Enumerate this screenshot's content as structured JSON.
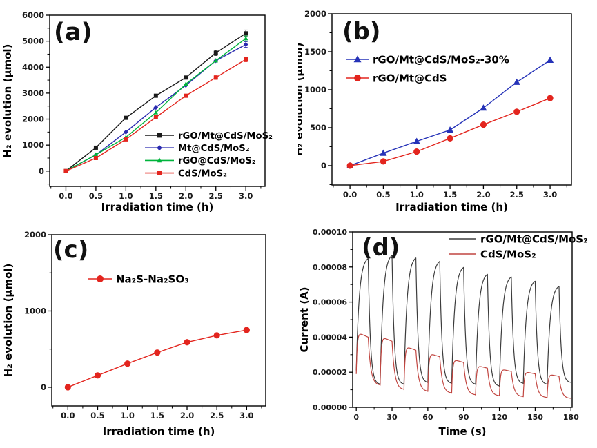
{
  "figure": {
    "background": "#ffffff",
    "panel_labels": [
      "(a)",
      "(b)",
      "(c)",
      "(d)"
    ]
  },
  "chart_data": [
    {
      "id": "a",
      "type": "line",
      "panel_label": "(a)",
      "xlabel": "Irradiation time (h)",
      "ylabel": "H₂ evolution (μmol)",
      "xlim": [
        -0.27,
        3.32
      ],
      "ylim": [
        -590,
        6000
      ],
      "xticks": [
        0.0,
        0.5,
        1.0,
        1.5,
        2.0,
        2.5,
        3.0
      ],
      "xtick_labels": [
        "0.0",
        "0.5",
        "1.0",
        "1.5",
        "2.0",
        "2.5",
        "3.0"
      ],
      "yticks": [
        0,
        1000,
        2000,
        3000,
        4000,
        5000,
        6000
      ],
      "ytick_labels": [
        "0",
        "1000",
        "2000",
        "3000",
        "4000",
        "5000",
        "6000"
      ],
      "x": [
        0,
        0.5,
        1.0,
        1.5,
        2.0,
        2.5,
        3.0
      ],
      "legend_position": "bottom-right",
      "series": [
        {
          "name": "rGO/Mt@CdS/MoS₂",
          "color": "#1a1a1a",
          "marker": "square",
          "values": [
            0,
            900,
            2050,
            2900,
            3600,
            4550,
            5300
          ],
          "err": [
            0,
            0,
            0,
            0,
            0,
            100,
            130
          ]
        },
        {
          "name": "Mt@CdS/MoS₂",
          "color": "#2a2ab0",
          "marker": "diamond",
          "values": [
            0,
            620,
            1500,
            2450,
            3300,
            4250,
            4870
          ],
          "err": [
            0,
            0,
            0,
            0,
            0,
            0,
            110
          ]
        },
        {
          "name": "rGO@CdS/MoS₂",
          "color": "#00b43c",
          "marker": "triangle",
          "values": [
            0,
            630,
            1300,
            2250,
            3350,
            4250,
            5100
          ],
          "err": [
            0,
            0,
            0,
            0,
            0,
            0,
            100
          ]
        },
        {
          "name": "CdS/MoS₂",
          "color": "#e3251e",
          "marker": "square",
          "values": [
            0,
            500,
            1220,
            2070,
            2900,
            3600,
            4300
          ],
          "err": [
            0,
            0,
            0,
            0,
            0,
            70,
            90
          ]
        }
      ]
    },
    {
      "id": "b",
      "type": "line",
      "panel_label": "(b)",
      "xlabel": "Irradiation time (h)",
      "ylabel": "H₂ evolution (μmol)",
      "xlim": [
        -0.27,
        3.32
      ],
      "ylim": [
        -255,
        2000
      ],
      "xticks": [
        0.0,
        0.5,
        1.0,
        1.5,
        2.0,
        2.5,
        3.0
      ],
      "xtick_labels": [
        "0.0",
        "0.5",
        "1.0",
        "1.5",
        "2.0",
        "2.5",
        "3.0"
      ],
      "yticks": [
        0,
        500,
        1000,
        1500,
        2000
      ],
      "ytick_labels": [
        "0",
        "500",
        "1000",
        "1500",
        "2000"
      ],
      "x": [
        0,
        0.5,
        1.0,
        1.5,
        2.0,
        2.5,
        3.0
      ],
      "legend_position": "top-left",
      "series": [
        {
          "name": "rGO/Mt@CdS/MoS₂-30%",
          "color": "#2633b8",
          "marker": "triangle",
          "values": [
            0,
            165,
            320,
            470,
            760,
            1100,
            1390
          ]
        },
        {
          "name": "rGO/Mt@CdS",
          "color": "#e3251e",
          "marker": "circle",
          "values": [
            0,
            55,
            185,
            360,
            540,
            710,
            890
          ]
        }
      ]
    },
    {
      "id": "c",
      "type": "line",
      "panel_label": "(c)",
      "xlabel": "Irradiation time (h)",
      "ylabel": "H₂ evolution (μmol)",
      "xlim": [
        -0.27,
        3.32
      ],
      "ylim": [
        -245,
        2000
      ],
      "xticks": [
        0.0,
        0.5,
        1.0,
        1.5,
        2.0,
        2.5,
        3.0
      ],
      "xtick_labels": [
        "0.0",
        "0.5",
        "1.0",
        "1.5",
        "2.0",
        "2.5",
        "3.0"
      ],
      "yticks": [
        0,
        1000,
        2000
      ],
      "ytick_labels": [
        "0",
        "1000",
        "2000"
      ],
      "x": [
        0,
        0.5,
        1.0,
        1.5,
        2.0,
        2.5,
        3.0
      ],
      "legend_position": "upper-middle-left",
      "series": [
        {
          "name": "Na₂S-Na₂SO₃",
          "color": "#e3251e",
          "marker": "circle",
          "values": [
            0,
            155,
            310,
            455,
            590,
            680,
            750
          ]
        }
      ]
    },
    {
      "id": "d",
      "type": "photocurrent",
      "panel_label": "(d)",
      "xlabel": "Time (s)",
      "ylabel": "Current (A)",
      "xlim": [
        -3,
        181
      ],
      "ylim": [
        0,
        0.0001
      ],
      "xticks": [
        0,
        30,
        60,
        90,
        120,
        150,
        180
      ],
      "xtick_labels": [
        "0",
        "30",
        "60",
        "90",
        "120",
        "150",
        "180"
      ],
      "yticks": [
        0,
        2e-05,
        4e-05,
        6e-05,
        8e-05,
        0.0001
      ],
      "ytick_labels": [
        "0.00000",
        "0.00002",
        "0.00004",
        "0.00006",
        "0.00008",
        "0.00010"
      ],
      "cycle_period_s": 20,
      "light_on_duration_s": 10,
      "legend_position": "top-right",
      "series": [
        {
          "name": "rGO/Mt@CdS/MoS₂",
          "color": "#3c3c3c",
          "shape": "charging",
          "start": 2.1e-05,
          "peaks": [
            8.6e-05,
            8.8e-05,
            8.65e-05,
            8.45e-05,
            8.1e-05,
            7.7e-05,
            7.55e-05,
            7.3e-05,
            7e-05
          ],
          "baselines": [
            1.3e-05,
            1.3e-05,
            1.4e-05,
            1.35e-05,
            1.3e-05,
            1.2e-05,
            1.35e-05,
            1.3e-05,
            1.4e-05
          ]
        },
        {
          "name": "CdS/MoS₂",
          "color": "#c14540",
          "shape": "spike",
          "start": 1.9e-05,
          "peaks": [
            4.3e-05,
            4.05e-05,
            3.5e-05,
            3.1e-05,
            2.75e-05,
            2.4e-05,
            2.2e-05,
            2.05e-05,
            1.9e-05
          ],
          "baselines": [
            1.25e-05,
            1e-05,
            9e-06,
            8e-06,
            7e-06,
            6.5e-06,
            6e-06,
            5.5e-06,
            5e-06
          ]
        }
      ]
    }
  ]
}
